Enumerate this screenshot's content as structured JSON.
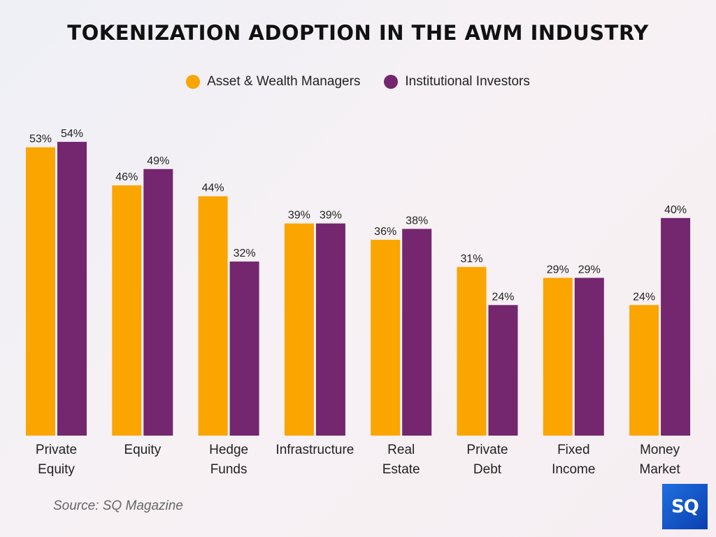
{
  "chart_data": {
    "type": "bar",
    "title": "TOKENIZATION ADOPTION IN THE AWM INDUSTRY",
    "categories": [
      [
        "Private",
        "Equity"
      ],
      [
        "Equity"
      ],
      [
        "Hedge",
        "Funds"
      ],
      [
        "Infrastructure"
      ],
      [
        "Real",
        "Estate"
      ],
      [
        "Private",
        "Debt"
      ],
      [
        "Fixed",
        "Income"
      ],
      [
        "Money",
        "Market"
      ]
    ],
    "series": [
      {
        "name": "Asset & Wealth Managers",
        "color": "#FBA500",
        "values": [
          53,
          46,
          44,
          39,
          36,
          31,
          29,
          24
        ]
      },
      {
        "name": "Institutional Investors",
        "color": "#74266E",
        "values": [
          54,
          49,
          32,
          39,
          38,
          24,
          29,
          40
        ]
      }
    ],
    "value_suffix": "%",
    "ylim": [
      0,
      60
    ],
    "grid": false,
    "legend_position": "top"
  },
  "source": "Source: SQ Magazine",
  "logo_text": "SQ"
}
